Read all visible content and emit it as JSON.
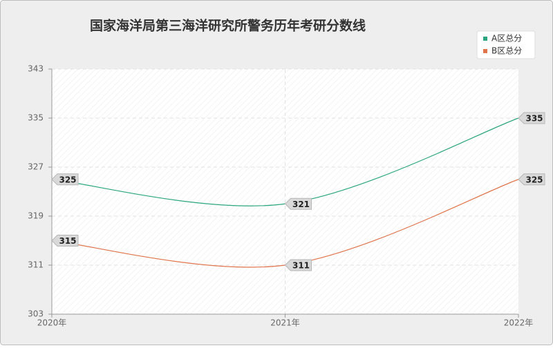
{
  "chart_data": {
    "type": "line",
    "title": "国家海洋局第三海洋研究所警务历年考研分数线",
    "categories": [
      "2020年",
      "2021年",
      "2022年"
    ],
    "series": [
      {
        "name": "A区总分",
        "color": "#2aa57f",
        "values": [
          325,
          321,
          335
        ]
      },
      {
        "name": "B区总分",
        "color": "#e0734a",
        "values": [
          315,
          311,
          325
        ]
      }
    ],
    "ylim": [
      303,
      343
    ],
    "yticks": [
      303,
      311,
      319,
      327,
      335,
      343
    ],
    "grid": true,
    "smooth": true,
    "legend": "upper right"
  }
}
